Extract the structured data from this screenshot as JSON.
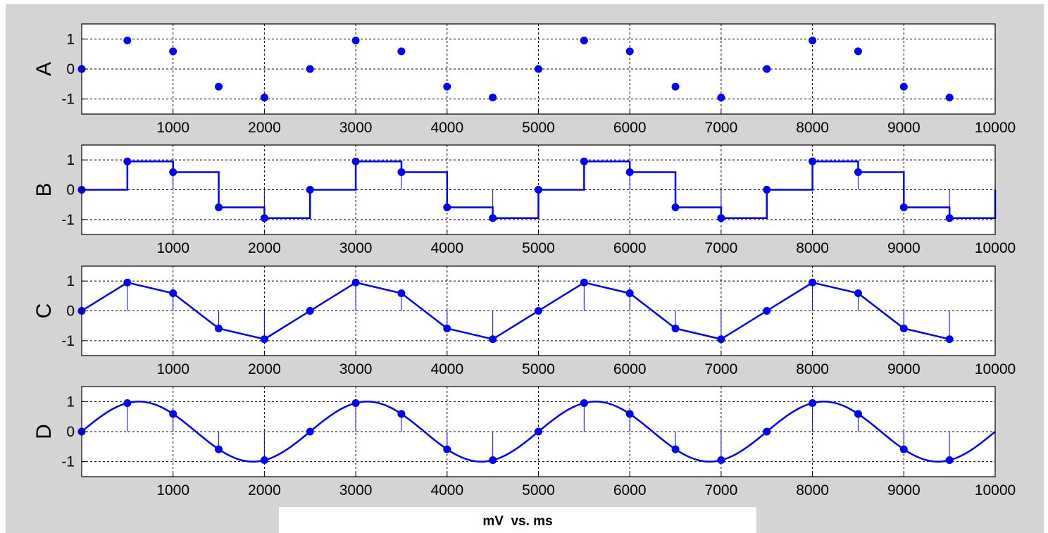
{
  "figure": {
    "xlabel": "mV  vs. ms"
  },
  "chart_data": [
    {
      "panel": "A",
      "type": "scatter",
      "ylabel": "A",
      "xlim": [
        0,
        10000
      ],
      "ylim": [
        -1.5,
        1.5
      ],
      "xticks": [
        1000,
        2000,
        3000,
        4000,
        5000,
        6000,
        7000,
        8000,
        9000,
        10000
      ],
      "yticks": [
        -1,
        0,
        1
      ],
      "grid": true,
      "series": [
        {
          "x": [
            0,
            500,
            1000,
            1500,
            2000,
            2500,
            3000,
            3500,
            4000,
            4500,
            5000,
            5500,
            6000,
            6500,
            7000,
            7500,
            8000,
            8500,
            9000,
            9500
          ],
          "y": [
            0,
            0.95,
            0.59,
            -0.59,
            -0.95,
            0,
            0.95,
            0.59,
            -0.59,
            -0.95,
            0,
            0.95,
            0.59,
            -0.59,
            -0.95,
            0,
            0.95,
            0.59,
            -0.59,
            -0.95
          ],
          "color": "#0000ff"
        }
      ]
    },
    {
      "panel": "B",
      "type": "line",
      "style": "stairs-with-stems",
      "ylabel": "B",
      "xlim": [
        0,
        10000
      ],
      "ylim": [
        -1.5,
        1.5
      ],
      "xticks": [
        1000,
        2000,
        3000,
        4000,
        5000,
        6000,
        7000,
        8000,
        9000,
        10000
      ],
      "yticks": [
        -1,
        0,
        1
      ],
      "grid": true,
      "series": [
        {
          "x": [
            0,
            500,
            1000,
            1500,
            2000,
            2500,
            3000,
            3500,
            4000,
            4500,
            5000,
            5500,
            6000,
            6500,
            7000,
            7500,
            8000,
            8500,
            9000,
            9500
          ],
          "y": [
            0,
            0.95,
            0.59,
            -0.59,
            -0.95,
            0,
            0.95,
            0.59,
            -0.59,
            -0.95,
            0,
            0.95,
            0.59,
            -0.59,
            -0.95,
            0,
            0.95,
            0.59,
            -0.59,
            -0.95
          ],
          "color": "#0000ff"
        }
      ]
    },
    {
      "panel": "C",
      "type": "line",
      "style": "linear-with-stems",
      "ylabel": "C",
      "xlim": [
        0,
        10000
      ],
      "ylim": [
        -1.5,
        1.5
      ],
      "xticks": [
        1000,
        2000,
        3000,
        4000,
        5000,
        6000,
        7000,
        8000,
        9000,
        10000
      ],
      "yticks": [
        -1,
        0,
        1
      ],
      "grid": true,
      "series": [
        {
          "x": [
            0,
            500,
            1000,
            1500,
            2000,
            2500,
            3000,
            3500,
            4000,
            4500,
            5000,
            5500,
            6000,
            6500,
            7000,
            7500,
            8000,
            8500,
            9000,
            9500
          ],
          "y": [
            0,
            0.95,
            0.59,
            -0.59,
            -0.95,
            0,
            0.95,
            0.59,
            -0.59,
            -0.95,
            0,
            0.95,
            0.59,
            -0.59,
            -0.95,
            0,
            0.95,
            0.59,
            -0.59,
            -0.95
          ],
          "color": "#0000ff"
        }
      ]
    },
    {
      "panel": "D",
      "type": "line",
      "style": "sine-with-stems",
      "ylabel": "D",
      "xlim": [
        0,
        10000
      ],
      "ylim": [
        -1.5,
        1.5
      ],
      "xticks": [
        1000,
        2000,
        3000,
        4000,
        5000,
        6000,
        7000,
        8000,
        9000,
        10000
      ],
      "yticks": [
        -1,
        0,
        1
      ],
      "grid": true,
      "series": [
        {
          "x": [
            0,
            500,
            1000,
            1500,
            2000,
            2500,
            3000,
            3500,
            4000,
            4500,
            5000,
            5500,
            6000,
            6500,
            7000,
            7500,
            8000,
            8500,
            9000,
            9500
          ],
          "y": [
            0,
            0.95,
            0.59,
            -0.59,
            -0.95,
            0,
            0.95,
            0.59,
            -0.59,
            -0.95,
            0,
            0.95,
            0.59,
            -0.59,
            -0.95,
            0,
            0.95,
            0.59,
            -0.59,
            -0.95
          ],
          "period_ms": 2500,
          "color": "#0000ff"
        }
      ]
    }
  ]
}
